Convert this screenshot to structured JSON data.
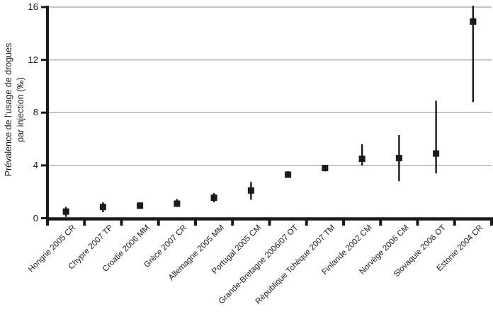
{
  "figure": {
    "background": "#ffffff",
    "ink_color": "#1a1a1a",
    "grid_color": "#b3b3b3"
  },
  "chart_data": {
    "type": "scatter",
    "title": "",
    "ylabel_line1": "Prévalence de l'usage de drogues",
    "ylabel_line2": "par injection (‰)",
    "xlabel": "",
    "ylim": [
      0,
      16
    ],
    "yticks": [
      0,
      4,
      8,
      12,
      16
    ],
    "grid": "horizontal-gray-lines",
    "legend": "none",
    "marker": "filled-black-square",
    "error_bars": "vertical-no-caps",
    "points": [
      {
        "label": "Hongrie 2005 CR",
        "value": 0.5,
        "low": 0.1,
        "high": 0.85
      },
      {
        "label": "Chypre 2007 TP",
        "value": 0.85,
        "low": 0.45,
        "high": 1.2
      },
      {
        "label": "Croatie 2006 MM",
        "value": 0.95,
        "low": 0.7,
        "high": 1.2
      },
      {
        "label": "Grèce 2007 CR",
        "value": 1.1,
        "low": 0.85,
        "high": 1.45
      },
      {
        "label": "Allemagne  2005 MM",
        "value": 1.55,
        "low": 1.2,
        "high": 1.9
      },
      {
        "label": "Portugal 2005 CM",
        "value": 2.1,
        "low": 1.4,
        "high": 2.75
      },
      {
        "label": "Grande-Bretagne 2006/07 OT",
        "value": 3.3,
        "low": 3.1,
        "high": 3.55
      },
      {
        "label": "République Tchèque 2007 TM",
        "value": 3.8,
        "low": 3.55,
        "high": 4.05
      },
      {
        "label": "Finlande  2002 CM",
        "value": 4.5,
        "low": 4.0,
        "high": 5.6
      },
      {
        "label": "Norvège  2006 CM",
        "value": 4.55,
        "low": 2.8,
        "high": 6.3
      },
      {
        "label": "Slovaquie 2006 OT",
        "value": 4.9,
        "low": 3.4,
        "high": 8.9
      },
      {
        "label": "Estonie  2004 CR",
        "value": 14.9,
        "low": 8.8,
        "high": 16.1
      }
    ]
  }
}
